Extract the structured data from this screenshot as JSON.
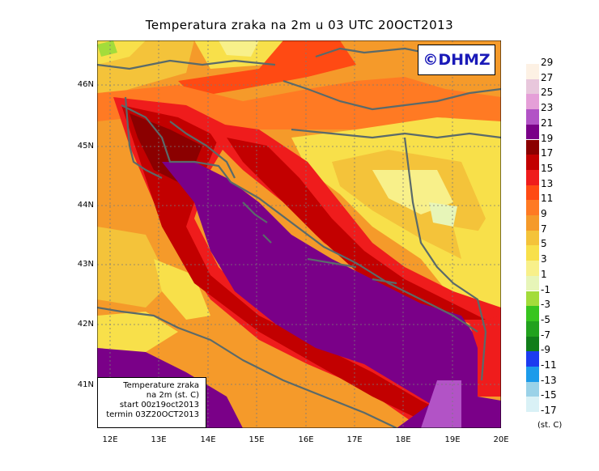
{
  "title": "Temperatura zraka na 2m u 03 UTC 20OCT2013",
  "logo": "©DHMZ",
  "infobox": {
    "line1": "Temperature zraka",
    "line2": "na 2m (st. C)",
    "line3": "start 00z19oct2013",
    "line4": "termin 03Z20OCT2013"
  },
  "units": "(st. C)",
  "axes": {
    "lat_labels": [
      "46N",
      "45N",
      "44N",
      "43N",
      "42N",
      "41N"
    ],
    "lon_labels": [
      "12E",
      "13E",
      "14E",
      "15E",
      "16E",
      "17E",
      "18E",
      "19E",
      "20E"
    ]
  },
  "legend": [
    {
      "label": "29",
      "color": "#fdf1e4"
    },
    {
      "label": "27",
      "color": "#e8c7dc"
    },
    {
      "label": "25",
      "color": "#e59fd8"
    },
    {
      "label": "23",
      "color": "#b253c6"
    },
    {
      "label": "21",
      "color": "#7a0088"
    },
    {
      "label": "19",
      "color": "#8b0000"
    },
    {
      "label": "17",
      "color": "#c20000"
    },
    {
      "label": "15",
      "color": "#ef1c1c"
    },
    {
      "label": "13",
      "color": "#ff4a13"
    },
    {
      "label": "11",
      "color": "#ff7a23"
    },
    {
      "label": "9",
      "color": "#f59a2a"
    },
    {
      "label": "7",
      "color": "#f4c33a"
    },
    {
      "label": "5",
      "color": "#f8e04a"
    },
    {
      "label": "3",
      "color": "#f8f08a"
    },
    {
      "label": "1",
      "color": "#e7f5b8"
    },
    {
      "label": "-1",
      "color": "#a3dc3b"
    },
    {
      "label": "-3",
      "color": "#37c51f"
    },
    {
      "label": "-5",
      "color": "#22a21e"
    },
    {
      "label": "-7",
      "color": "#117d1a"
    },
    {
      "label": "-9",
      "color": "#1c3cf0"
    },
    {
      "label": "-11",
      "color": "#1c9bea"
    },
    {
      "label": "-13",
      "color": "#9ad2e8"
    },
    {
      "label": "-15",
      "color": "#d9f1f6"
    },
    {
      "label": "-17",
      "color": "#ffffff"
    }
  ]
}
